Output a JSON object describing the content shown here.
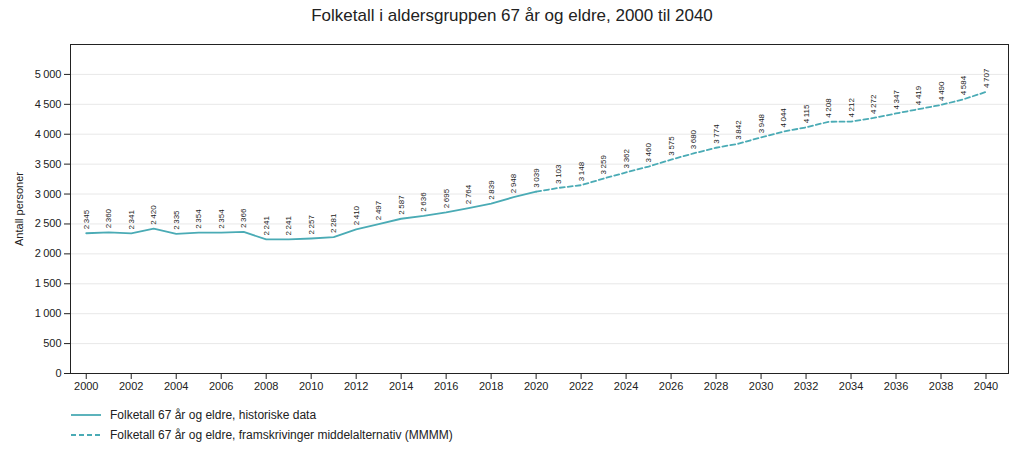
{
  "chart_data": {
    "type": "line",
    "title": "Folketall i aldersgruppen 67 år og eldre, 2000 til 2040",
    "y_label": "Antall personer",
    "x": [
      2000,
      2001,
      2002,
      2003,
      2004,
      2005,
      2006,
      2007,
      2008,
      2009,
      2010,
      2011,
      2012,
      2013,
      2014,
      2015,
      2016,
      2017,
      2018,
      2019,
      2020,
      2021,
      2022,
      2023,
      2024,
      2025,
      2026,
      2027,
      2028,
      2029,
      2030,
      2031,
      2032,
      2033,
      2034,
      2035,
      2036,
      2037,
      2038,
      2039,
      2040
    ],
    "series": [
      {
        "name": "Folketall 67 år og eldre, historiske data",
        "color": "#4aabb5",
        "line_style": "solid",
        "values": [
          2345,
          2360,
          2341,
          2420,
          2335,
          2354,
          2354,
          2366,
          2241,
          2241,
          2257,
          2281,
          2410,
          2497,
          2587,
          2636,
          2695,
          2764,
          2839,
          2948,
          3039,
          null,
          null,
          null,
          null,
          null,
          null,
          null,
          null,
          null,
          null,
          null,
          null,
          null,
          null,
          null,
          null,
          null,
          null,
          null,
          null
        ],
        "value_labels": [
          "2 345",
          "2 360",
          "2 341",
          "2 420",
          "2 335",
          "2 354",
          "2 354",
          "2 366",
          "2 241",
          "2 241",
          "2 257",
          "2 281",
          "2 410",
          "2 497",
          "2 587",
          "2 636",
          "2 695",
          "2 764",
          "2 839",
          "2 948",
          "3 039",
          null,
          null,
          null,
          null,
          null,
          null,
          null,
          null,
          null,
          null,
          null,
          null,
          null,
          null,
          null,
          null,
          null,
          null,
          null,
          null
        ]
      },
      {
        "name": "Folketall 67 år og eldre, framskrivinger middelalternativ (MMMM)",
        "color": "#4aabb5",
        "line_style": "dashed",
        "values": [
          null,
          null,
          null,
          null,
          null,
          null,
          null,
          null,
          null,
          null,
          null,
          null,
          null,
          null,
          null,
          null,
          null,
          null,
          null,
          null,
          3039,
          3103,
          3148,
          3259,
          3362,
          3460,
          3575,
          3680,
          3774,
          3842,
          3948,
          4044,
          4115,
          4208,
          4212,
          4272,
          4347,
          4419,
          4490,
          4584,
          4707
        ],
        "value_labels": [
          null,
          null,
          null,
          null,
          null,
          null,
          null,
          null,
          null,
          null,
          null,
          null,
          null,
          null,
          null,
          null,
          null,
          null,
          null,
          null,
          null,
          "3 103",
          "3 148",
          "3 259",
          "3 362",
          "3 460",
          "3 575",
          "3 680",
          "3 774",
          "3 842",
          "3 948",
          "4 044",
          "4 115",
          "4 208",
          "4 212",
          "4 272",
          "4 347",
          "4 419",
          "4 490",
          "4 584",
          "4 707"
        ]
      }
    ],
    "xlim": [
      1999.3,
      2041.0
    ],
    "xticks": [
      2000,
      2002,
      2004,
      2006,
      2008,
      2010,
      2012,
      2014,
      2016,
      2018,
      2020,
      2022,
      2024,
      2026,
      2028,
      2030,
      2032,
      2034,
      2036,
      2038,
      2040
    ],
    "ylim": [
      0,
      5500
    ],
    "yticks": [
      0,
      500,
      {
        "value": 1000,
        "label": "1 000"
      },
      {
        "value": 1500,
        "label": "1 500"
      },
      {
        "value": 2000,
        "label": "2 000"
      },
      {
        "value": 2500,
        "label": "2 500"
      },
      {
        "value": 3000,
        "label": "3 000"
      },
      {
        "value": 3500,
        "label": "3 500"
      },
      {
        "value": 4000,
        "label": "4 000"
      },
      {
        "value": 4500,
        "label": "4 500"
      },
      {
        "value": 5000,
        "label": "5 000"
      }
    ],
    "grid": true,
    "data_labels": true,
    "legend": "lower left"
  }
}
